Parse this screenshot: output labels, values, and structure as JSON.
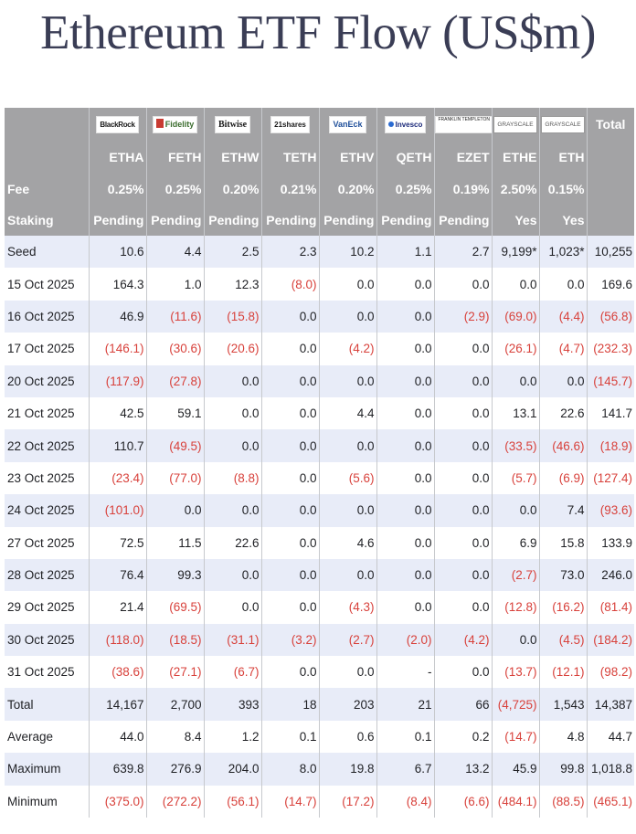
{
  "title": "Ethereum ETF Flow (US$m)",
  "header": {
    "logos": [
      {
        "icon": "blackrock-logo",
        "text": "BlackRock"
      },
      {
        "icon": "fidelity-logo",
        "text": "Fidelity"
      },
      {
        "icon": "bitwise-logo",
        "text": "Bitwise"
      },
      {
        "icon": "21shares-logo",
        "text": "21shares"
      },
      {
        "icon": "vaneck-logo",
        "text": "VanEck"
      },
      {
        "icon": "invesco-logo",
        "text": "Invesco"
      },
      {
        "icon": "franklin-templeton-logo",
        "text": "FRANKLIN TEMPLETON"
      },
      {
        "icon": "grayscale-logo",
        "text": "GRAYSCALE"
      },
      {
        "icon": "grayscale-logo",
        "text": "GRAYSCALE"
      }
    ],
    "total_label": "Total",
    "tickers": [
      "ETHA",
      "FETH",
      "ETHW",
      "TETH",
      "ETHV",
      "QETH",
      "EZET",
      "ETHE",
      "ETH"
    ],
    "fee_label": "Fee",
    "fees": [
      "0.25%",
      "0.25%",
      "0.20%",
      "0.21%",
      "0.20%",
      "0.25%",
      "0.19%",
      "2.50%",
      "0.15%"
    ],
    "staking_label": "Staking",
    "staking": [
      "Pending",
      "Pending",
      "Pending",
      "Pending",
      "Pending",
      "Pending",
      "Pending",
      "Yes",
      "Yes"
    ]
  },
  "rows": [
    {
      "label": "Seed",
      "values": [
        "10.6",
        "4.4",
        "2.5",
        "2.3",
        "10.2",
        "1.1",
        "2.7",
        "9,199*",
        "1,023*",
        "10,255"
      ]
    },
    {
      "label": "15 Oct 2025",
      "values": [
        "164.3",
        "1.0",
        "12.3",
        "(8.0)",
        "0.0",
        "0.0",
        "0.0",
        "0.0",
        "0.0",
        "169.6"
      ]
    },
    {
      "label": "16 Oct 2025",
      "values": [
        "46.9",
        "(11.6)",
        "(15.8)",
        "0.0",
        "0.0",
        "0.0",
        "(2.9)",
        "(69.0)",
        "(4.4)",
        "(56.8)"
      ]
    },
    {
      "label": "17 Oct 2025",
      "values": [
        "(146.1)",
        "(30.6)",
        "(20.6)",
        "0.0",
        "(4.2)",
        "0.0",
        "0.0",
        "(26.1)",
        "(4.7)",
        "(232.3)"
      ]
    },
    {
      "label": "20 Oct 2025",
      "values": [
        "(117.9)",
        "(27.8)",
        "0.0",
        "0.0",
        "0.0",
        "0.0",
        "0.0",
        "0.0",
        "0.0",
        "(145.7)"
      ]
    },
    {
      "label": "21 Oct 2025",
      "values": [
        "42.5",
        "59.1",
        "0.0",
        "0.0",
        "4.4",
        "0.0",
        "0.0",
        "13.1",
        "22.6",
        "141.7"
      ]
    },
    {
      "label": "22 Oct 2025",
      "values": [
        "110.7",
        "(49.5)",
        "0.0",
        "0.0",
        "0.0",
        "0.0",
        "0.0",
        "(33.5)",
        "(46.6)",
        "(18.9)"
      ]
    },
    {
      "label": "23 Oct 2025",
      "values": [
        "(23.4)",
        "(77.0)",
        "(8.8)",
        "0.0",
        "(5.6)",
        "0.0",
        "0.0",
        "(5.7)",
        "(6.9)",
        "(127.4)"
      ]
    },
    {
      "label": "24 Oct 2025",
      "values": [
        "(101.0)",
        "0.0",
        "0.0",
        "0.0",
        "0.0",
        "0.0",
        "0.0",
        "0.0",
        "7.4",
        "(93.6)"
      ]
    },
    {
      "label": "27 Oct 2025",
      "values": [
        "72.5",
        "11.5",
        "22.6",
        "0.0",
        "4.6",
        "0.0",
        "0.0",
        "6.9",
        "15.8",
        "133.9"
      ]
    },
    {
      "label": "28 Oct 2025",
      "values": [
        "76.4",
        "99.3",
        "0.0",
        "0.0",
        "0.0",
        "0.0",
        "0.0",
        "(2.7)",
        "73.0",
        "246.0"
      ]
    },
    {
      "label": "29 Oct 2025",
      "values": [
        "21.4",
        "(69.5)",
        "0.0",
        "0.0",
        "(4.3)",
        "0.0",
        "0.0",
        "(12.8)",
        "(16.2)",
        "(81.4)"
      ]
    },
    {
      "label": "30 Oct 2025",
      "values": [
        "(118.0)",
        "(18.5)",
        "(31.1)",
        "(3.2)",
        "(2.7)",
        "(2.0)",
        "(4.2)",
        "0.0",
        "(4.5)",
        "(184.2)"
      ]
    },
    {
      "label": "31 Oct 2025",
      "values": [
        "(38.6)",
        "(27.1)",
        "(6.7)",
        "0.0",
        "0.0",
        "-",
        "0.0",
        "(13.7)",
        "(12.1)",
        "(98.2)"
      ]
    }
  ],
  "summary": [
    {
      "label": "Total",
      "values": [
        "14,167",
        "2,700",
        "393",
        "18",
        "203",
        "21",
        "66",
        "(4,725)",
        "1,543",
        "14,387"
      ]
    },
    {
      "label": "Average",
      "values": [
        "44.0",
        "8.4",
        "1.2",
        "0.1",
        "0.6",
        "0.1",
        "0.2",
        "(14.7)",
        "4.8",
        "44.7"
      ]
    },
    {
      "label": "Maximum",
      "values": [
        "639.8",
        "276.9",
        "204.0",
        "8.0",
        "19.8",
        "6.7",
        "13.2",
        "45.9",
        "99.8",
        "1,018.8"
      ]
    },
    {
      "label": "Minimum",
      "values": [
        "(375.0)",
        "(272.2)",
        "(56.1)",
        "(14.7)",
        "(17.2)",
        "(8.4)",
        "(6.6)",
        "(484.1)",
        "(88.5)",
        "(465.1)"
      ]
    }
  ],
  "colors": {
    "header_gray": "#a3a3a5",
    "row_blue": "#e8ecf8",
    "negative_red": "#d8413b",
    "title": "#3a3d55"
  }
}
